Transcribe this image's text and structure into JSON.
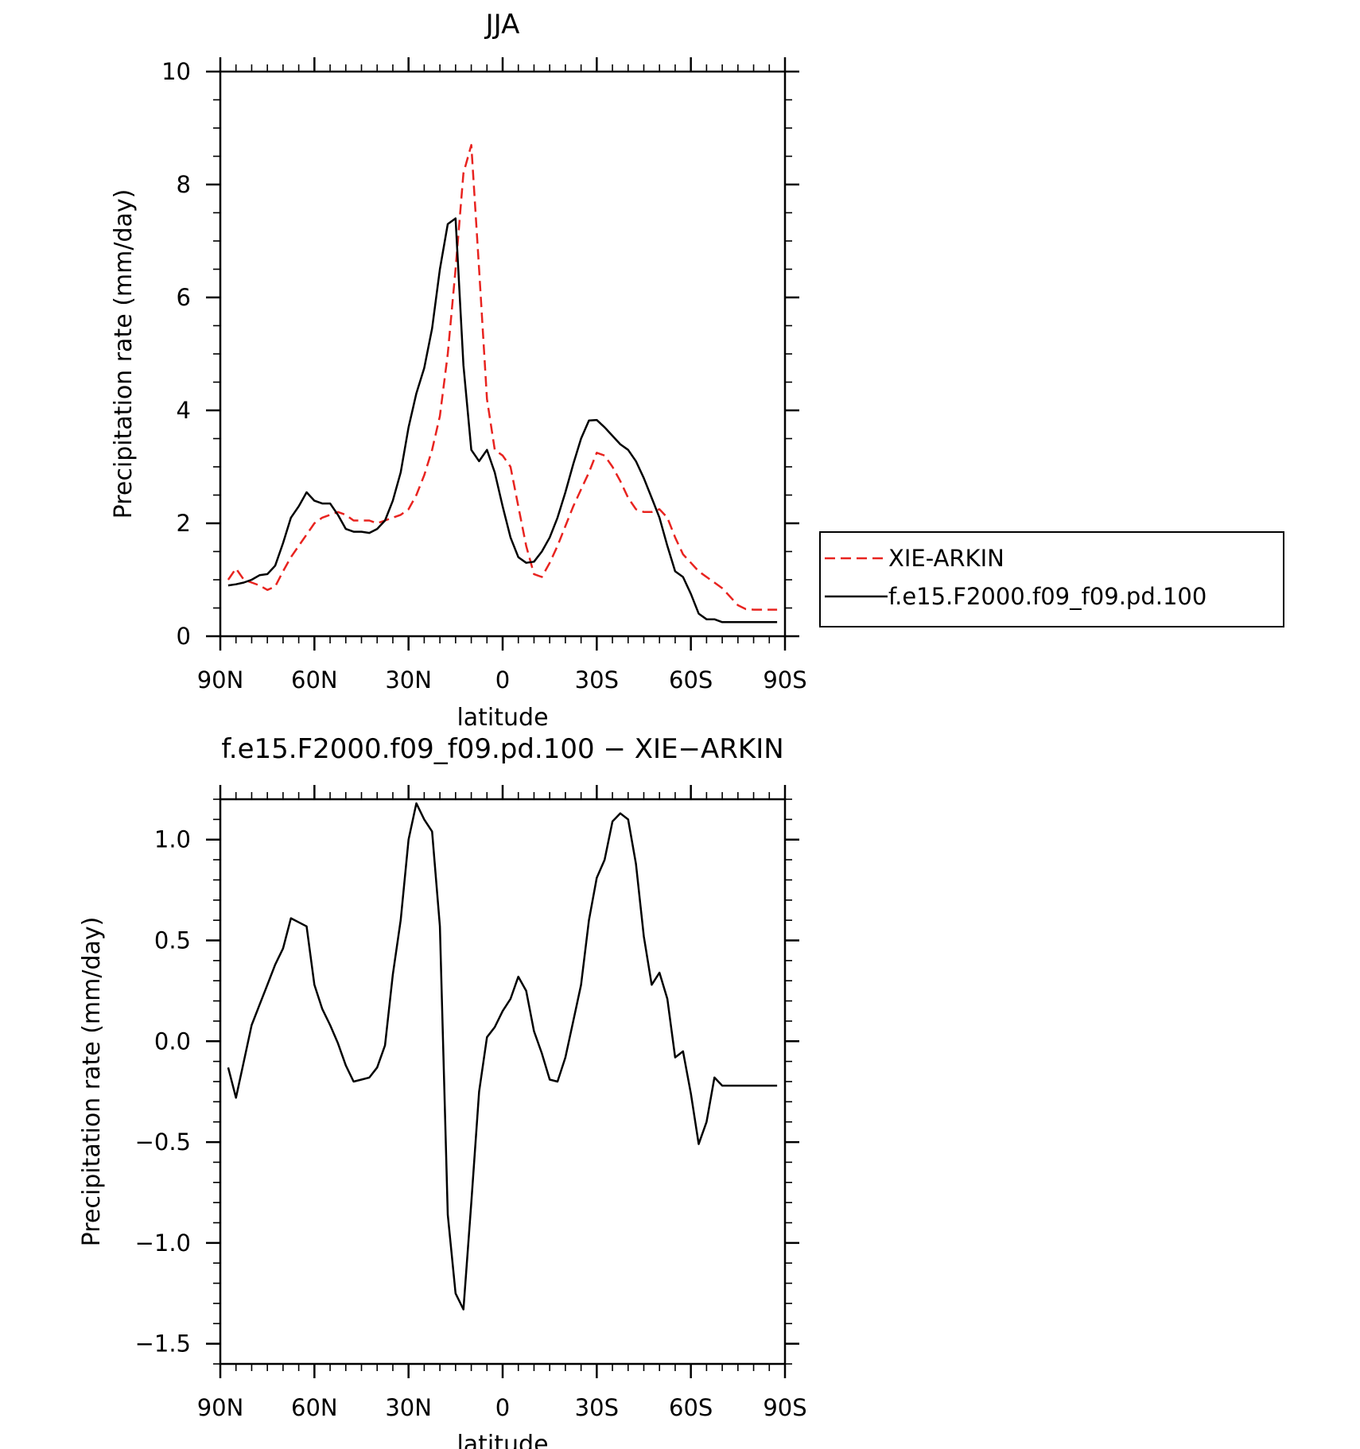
{
  "chart_data": [
    {
      "type": "line",
      "title": "JJA",
      "xlabel": "latitude",
      "ylabel": "Precipitation rate (mm/day)",
      "xlim": [
        90,
        -90
      ],
      "ylim": [
        0,
        10
      ],
      "x_ticks": [
        90,
        60,
        30,
        0,
        -30,
        -60,
        -90
      ],
      "x_tick_labels": [
        "90N",
        "60N",
        "30N",
        "0",
        "30S",
        "60S",
        "90S"
      ],
      "y_ticks": [
        0,
        2,
        4,
        6,
        8,
        10
      ],
      "y_tick_labels": [
        "0",
        "2",
        "4",
        "6",
        "8",
        "10"
      ],
      "grid": false,
      "legend": "outside-right",
      "series": [
        {
          "name": "XIE-ARKIN",
          "color": "#e8231f",
          "dash": "dashed",
          "x": [
            87.5,
            85,
            82.5,
            80,
            77.5,
            75,
            72.5,
            70,
            67.5,
            65,
            62.5,
            60,
            57.5,
            55,
            52.5,
            50,
            47.5,
            45,
            42.5,
            40,
            37.5,
            35,
            32.5,
            30,
            27.5,
            25,
            22.5,
            20,
            17.5,
            15,
            12.5,
            10,
            7.5,
            5,
            2.5,
            0,
            -2.5,
            -5,
            -7.5,
            -10,
            -12.5,
            -15,
            -17.5,
            -20,
            -22.5,
            -25,
            -27.5,
            -30,
            -32.5,
            -35,
            -37.5,
            -40,
            -42.5,
            -45,
            -47.5,
            -50,
            -52.5,
            -55,
            -57.5,
            -60,
            -62.5,
            -65,
            -67.5,
            -70,
            -72.5,
            -75,
            -77.5,
            -80,
            -82.5,
            -85,
            -87.5
          ],
          "y": [
            1.0,
            1.2,
            1.0,
            0.95,
            0.9,
            0.82,
            0.88,
            1.15,
            1.4,
            1.6,
            1.8,
            2.0,
            2.1,
            2.15,
            2.2,
            2.15,
            2.05,
            2.05,
            2.05,
            2.0,
            2.05,
            2.1,
            2.15,
            2.25,
            2.5,
            2.85,
            3.3,
            3.9,
            5.0,
            6.5,
            8.2,
            8.7,
            6.5,
            4.2,
            3.3,
            3.2,
            3.0,
            2.3,
            1.6,
            1.1,
            1.05,
            1.3,
            1.6,
            1.95,
            2.3,
            2.6,
            2.9,
            3.25,
            3.2,
            3.0,
            2.75,
            2.45,
            2.25,
            2.2,
            2.2,
            2.25,
            2.1,
            1.75,
            1.45,
            1.3,
            1.15,
            1.05,
            0.95,
            0.85,
            0.7,
            0.55,
            0.48,
            0.47,
            0.47,
            0.47,
            0.47
          ]
        },
        {
          "name": "f.e15.F2000.f09_f09.pd.100",
          "color": "#000000",
          "dash": "solid",
          "x": [
            87.5,
            85,
            82.5,
            80,
            77.5,
            75,
            72.5,
            70,
            67.5,
            65,
            62.5,
            60,
            57.5,
            55,
            52.5,
            50,
            47.5,
            45,
            42.5,
            40,
            37.5,
            35,
            32.5,
            30,
            27.5,
            25,
            22.5,
            20,
            17.5,
            15,
            12.5,
            10,
            7.5,
            5,
            2.5,
            0,
            -2.5,
            -5,
            -7.5,
            -10,
            -12.5,
            -15,
            -17.5,
            -20,
            -22.5,
            -25,
            -27.5,
            -30,
            -32.5,
            -35,
            -37.5,
            -40,
            -42.5,
            -45,
            -47.5,
            -50,
            -52.5,
            -55,
            -57.5,
            -60,
            -62.5,
            -65,
            -67.5,
            -70,
            -72.5,
            -75,
            -77.5,
            -80,
            -82.5,
            -85,
            -87.5
          ],
          "y": [
            0.9,
            0.92,
            0.95,
            1.0,
            1.08,
            1.1,
            1.25,
            1.65,
            2.1,
            2.3,
            2.55,
            2.4,
            2.35,
            2.35,
            2.15,
            1.9,
            1.85,
            1.85,
            1.83,
            1.9,
            2.05,
            2.4,
            2.9,
            3.7,
            4.3,
            4.75,
            5.45,
            6.5,
            7.3,
            7.4,
            4.8,
            3.3,
            3.1,
            3.3,
            2.9,
            2.3,
            1.75,
            1.4,
            1.3,
            1.32,
            1.5,
            1.75,
            2.1,
            2.55,
            3.05,
            3.5,
            3.82,
            3.83,
            3.7,
            3.55,
            3.4,
            3.3,
            3.1,
            2.8,
            2.45,
            2.1,
            1.6,
            1.15,
            1.05,
            0.75,
            0.4,
            0.3,
            0.3,
            0.25,
            0.25,
            0.25,
            0.25,
            0.25,
            0.25,
            0.25,
            0.25
          ]
        }
      ]
    },
    {
      "type": "line",
      "title": "f.e15.F2000.f09_f09.pd.100 − XIE−ARKIN",
      "xlabel": "latitude",
      "ylabel": "Precipitation rate (mm/day)",
      "xlim": [
        90,
        -90
      ],
      "ylim": [
        -1.6,
        1.2
      ],
      "x_ticks": [
        90,
        60,
        30,
        0,
        -30,
        -60,
        -90
      ],
      "x_tick_labels": [
        "90N",
        "60N",
        "30N",
        "0",
        "30S",
        "60S",
        "90S"
      ],
      "y_ticks": [
        -1.5,
        -1.0,
        -0.5,
        0.0,
        0.5,
        1.0
      ],
      "y_tick_labels": [
        "−1.5",
        "−1.0",
        "−0.5",
        "0.0",
        "0.5",
        "1.0"
      ],
      "grid": false,
      "series": [
        {
          "color": "#000000",
          "dash": "solid",
          "x": [
            87.5,
            85,
            82.5,
            80,
            77.5,
            75,
            72.5,
            70,
            67.5,
            65,
            62.5,
            60,
            57.5,
            55,
            52.5,
            50,
            47.5,
            45,
            42.5,
            40,
            37.5,
            35,
            32.5,
            30,
            27.5,
            25,
            22.5,
            20,
            17.5,
            15,
            12.5,
            10,
            7.5,
            5,
            2.5,
            0,
            -2.5,
            -5,
            -7.5,
            -10,
            -12.5,
            -15,
            -17.5,
            -20,
            -22.5,
            -25,
            -27.5,
            -30,
            -32.5,
            -35,
            -37.5,
            -40,
            -42.5,
            -45,
            -47.5,
            -50,
            -52.5,
            -55,
            -57.5,
            -60,
            -62.5,
            -65,
            -67.5,
            -70,
            -72.5,
            -75,
            -77.5,
            -80,
            -82.5,
            -85,
            -87.5
          ],
          "y": [
            -0.13,
            -0.28,
            -0.1,
            0.08,
            0.18,
            0.28,
            0.38,
            0.46,
            0.61,
            0.59,
            0.57,
            0.28,
            0.16,
            0.08,
            -0.01,
            -0.12,
            -0.2,
            -0.19,
            -0.18,
            -0.13,
            -0.02,
            0.33,
            0.6,
            1.0,
            1.18,
            1.1,
            1.04,
            0.57,
            -0.86,
            -1.25,
            -1.33,
            -0.8,
            -0.25,
            0.02,
            0.07,
            0.15,
            0.21,
            0.32,
            0.25,
            0.05,
            -0.06,
            -0.19,
            -0.2,
            -0.08,
            0.1,
            0.28,
            0.6,
            0.81,
            0.9,
            1.09,
            1.13,
            1.1,
            0.88,
            0.52,
            0.28,
            0.34,
            0.21,
            -0.08,
            -0.05,
            -0.26,
            -0.51,
            -0.4,
            -0.18,
            -0.22,
            -0.22,
            -0.22,
            -0.22,
            -0.22,
            -0.22,
            -0.22,
            -0.22
          ]
        }
      ]
    }
  ]
}
